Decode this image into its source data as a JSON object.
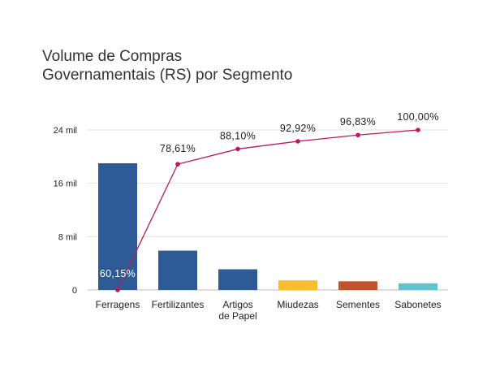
{
  "chart_data": {
    "type": "bar",
    "title_lines": [
      "Volume de Compras",
      "Governamentais (RS) por Segmento"
    ],
    "categories": [
      "Ferragens",
      "Fertilizantes",
      "Artigos\nde Papel",
      "Miudezas",
      "Sementes",
      "Sabonetes"
    ],
    "values": [
      19000,
      5900,
      3100,
      1450,
      1300,
      1000
    ],
    "bar_colors": [
      "#2e5b95",
      "#2e5b95",
      "#2e5b95",
      "#fbbd30",
      "#c0532d",
      "#5fc3d0"
    ],
    "ylim": [
      0,
      24000
    ],
    "y_ticks": [
      {
        "value": 0,
        "label": "0"
      },
      {
        "value": 8000,
        "label": "8 mil"
      },
      {
        "value": 16000,
        "label": "16 mil"
      },
      {
        "value": 24000,
        "label": "24 mil"
      }
    ],
    "cumulative": {
      "values": [
        60.15,
        78.61,
        88.1,
        92.92,
        96.83,
        100.0
      ],
      "labels": [
        "60,15%",
        "78,61%",
        "88,10%",
        "92,92%",
        "96,83%",
        "100,00%"
      ],
      "color": "#c2185b",
      "range": [
        0,
        100
      ]
    },
    "grid": true
  }
}
